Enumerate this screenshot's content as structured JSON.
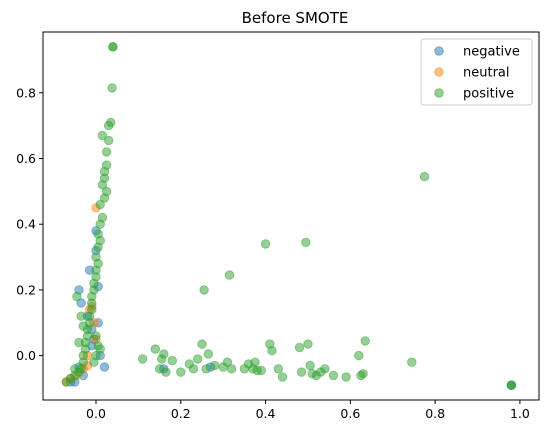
{
  "chart_data": {
    "type": "scatter",
    "title": "Before SMOTE",
    "xlabel": "",
    "ylabel": "",
    "xlim": [
      -0.125,
      1.045
    ],
    "ylim": [
      -0.135,
      0.985
    ],
    "xticks": [
      0.0,
      0.2,
      0.4,
      0.6,
      0.8,
      1.0
    ],
    "xtick_labels": [
      "0.0",
      "0.2",
      "0.4",
      "0.6",
      "0.8",
      "1.0"
    ],
    "yticks": [
      0.0,
      0.2,
      0.4,
      0.6,
      0.8
    ],
    "ytick_labels": [
      "0.0",
      "0.2",
      "0.4",
      "0.6",
      "0.8"
    ],
    "grid": false,
    "legend_position": "top-right",
    "series": [
      {
        "name": "negative",
        "color": "#1f77b4",
        "points": [
          [
            -0.04,
            0.2
          ],
          [
            -0.04,
            -0.035
          ],
          [
            -0.035,
            0.16
          ],
          [
            -0.03,
            -0.06
          ],
          [
            -0.02,
            0.12
          ],
          [
            -0.015,
            0.26
          ],
          [
            -0.01,
            0.03
          ],
          [
            -0.005,
            0.05
          ],
          [
            -0.01,
            0.08
          ],
          [
            0.0,
            0.38
          ],
          [
            0.0,
            0.32
          ],
          [
            0.005,
            0.21
          ],
          [
            0.005,
            0.1
          ],
          [
            0.01,
            0.0
          ],
          [
            0.02,
            -0.035
          ],
          [
            0.16,
            -0.04
          ],
          [
            0.27,
            -0.035
          ],
          [
            0.98,
            -0.09
          ],
          [
            -0.05,
            -0.08
          ],
          [
            -0.06,
            -0.08
          ]
        ]
      },
      {
        "name": "neutral",
        "color": "#ff7f0e",
        "points": [
          [
            0.0,
            0.45
          ],
          [
            -0.01,
            0.15
          ],
          [
            -0.015,
            0.14
          ],
          [
            -0.005,
            0.1
          ],
          [
            0.0,
            0.05
          ],
          [
            -0.02,
            0.0
          ],
          [
            -0.03,
            -0.04
          ],
          [
            -0.06,
            -0.07
          ],
          [
            -0.07,
            -0.08
          ],
          [
            -0.045,
            -0.06
          ],
          [
            -0.02,
            -0.03
          ]
        ]
      },
      {
        "name": "positive",
        "color": "#2ca02c",
        "points": [
          [
            0.04,
            0.94
          ],
          [
            0.04,
            0.94
          ],
          [
            0.038,
            0.815
          ],
          [
            0.035,
            0.71
          ],
          [
            0.03,
            0.7
          ],
          [
            0.03,
            0.655
          ],
          [
            0.015,
            0.67
          ],
          [
            0.025,
            0.62
          ],
          [
            0.025,
            0.58
          ],
          [
            0.02,
            0.56
          ],
          [
            0.02,
            0.54
          ],
          [
            0.025,
            0.5
          ],
          [
            0.015,
            0.52
          ],
          [
            0.02,
            0.48
          ],
          [
            0.01,
            0.46
          ],
          [
            0.015,
            0.42
          ],
          [
            0.01,
            0.4
          ],
          [
            0.005,
            0.37
          ],
          [
            0.01,
            0.35
          ],
          [
            0.005,
            0.33
          ],
          [
            0.0,
            0.3
          ],
          [
            0.005,
            0.28
          ],
          [
            0.0,
            0.26
          ],
          [
            0.0,
            0.24
          ],
          [
            -0.005,
            0.22
          ],
          [
            -0.005,
            0.2
          ],
          [
            -0.01,
            0.18
          ],
          [
            -0.01,
            0.16
          ],
          [
            -0.01,
            0.14
          ],
          [
            -0.015,
            0.12
          ],
          [
            -0.015,
            0.1
          ],
          [
            -0.02,
            0.08
          ],
          [
            -0.02,
            0.06
          ],
          [
            -0.025,
            0.04
          ],
          [
            -0.025,
            0.02
          ],
          [
            -0.03,
            0.0
          ],
          [
            -0.03,
            -0.02
          ],
          [
            -0.035,
            -0.04
          ],
          [
            -0.04,
            -0.05
          ],
          [
            -0.05,
            -0.06
          ],
          [
            -0.06,
            -0.07
          ],
          [
            -0.07,
            -0.08
          ],
          [
            -0.045,
            0.18
          ],
          [
            -0.035,
            0.12
          ],
          [
            -0.03,
            0.09
          ],
          [
            -0.04,
            0.04
          ],
          [
            -0.05,
            -0.04
          ],
          [
            0.0,
            0.06
          ],
          [
            0.005,
            0.03
          ],
          [
            0.0,
            0.0
          ],
          [
            -0.005,
            -0.02
          ],
          [
            0.01,
            0.02
          ],
          [
            0.11,
            -0.01
          ],
          [
            0.14,
            0.02
          ],
          [
            0.15,
            -0.04
          ],
          [
            0.155,
            -0.01
          ],
          [
            0.16,
            0.005
          ],
          [
            0.165,
            -0.05
          ],
          [
            0.18,
            -0.015
          ],
          [
            0.2,
            -0.05
          ],
          [
            0.22,
            -0.025
          ],
          [
            0.23,
            -0.04
          ],
          [
            0.24,
            -0.01
          ],
          [
            0.25,
            0.035
          ],
          [
            0.26,
            -0.04
          ],
          [
            0.265,
            0.005
          ],
          [
            0.28,
            -0.03
          ],
          [
            0.3,
            -0.035
          ],
          [
            0.31,
            -0.02
          ],
          [
            0.32,
            -0.04
          ],
          [
            0.255,
            0.2
          ],
          [
            0.315,
            0.245
          ],
          [
            0.35,
            -0.04
          ],
          [
            0.36,
            -0.025
          ],
          [
            0.37,
            -0.04
          ],
          [
            0.375,
            -0.02
          ],
          [
            0.38,
            -0.045
          ],
          [
            0.39,
            -0.045
          ],
          [
            0.4,
            0.34
          ],
          [
            0.41,
            0.035
          ],
          [
            0.415,
            0.015
          ],
          [
            0.43,
            -0.04
          ],
          [
            0.44,
            -0.065
          ],
          [
            0.48,
            0.025
          ],
          [
            0.485,
            -0.05
          ],
          [
            0.495,
            0.345
          ],
          [
            0.5,
            0.035
          ],
          [
            0.505,
            -0.03
          ],
          [
            0.51,
            -0.055
          ],
          [
            0.52,
            -0.06
          ],
          [
            0.53,
            -0.05
          ],
          [
            0.54,
            -0.04
          ],
          [
            0.56,
            -0.06
          ],
          [
            0.59,
            -0.065
          ],
          [
            0.62,
            0.0
          ],
          [
            0.625,
            -0.06
          ],
          [
            0.63,
            -0.055
          ],
          [
            0.635,
            0.045
          ],
          [
            0.745,
            -0.02
          ],
          [
            0.775,
            0.545
          ],
          [
            0.98,
            -0.09
          ],
          [
            0.98,
            -0.09
          ]
        ]
      }
    ]
  }
}
